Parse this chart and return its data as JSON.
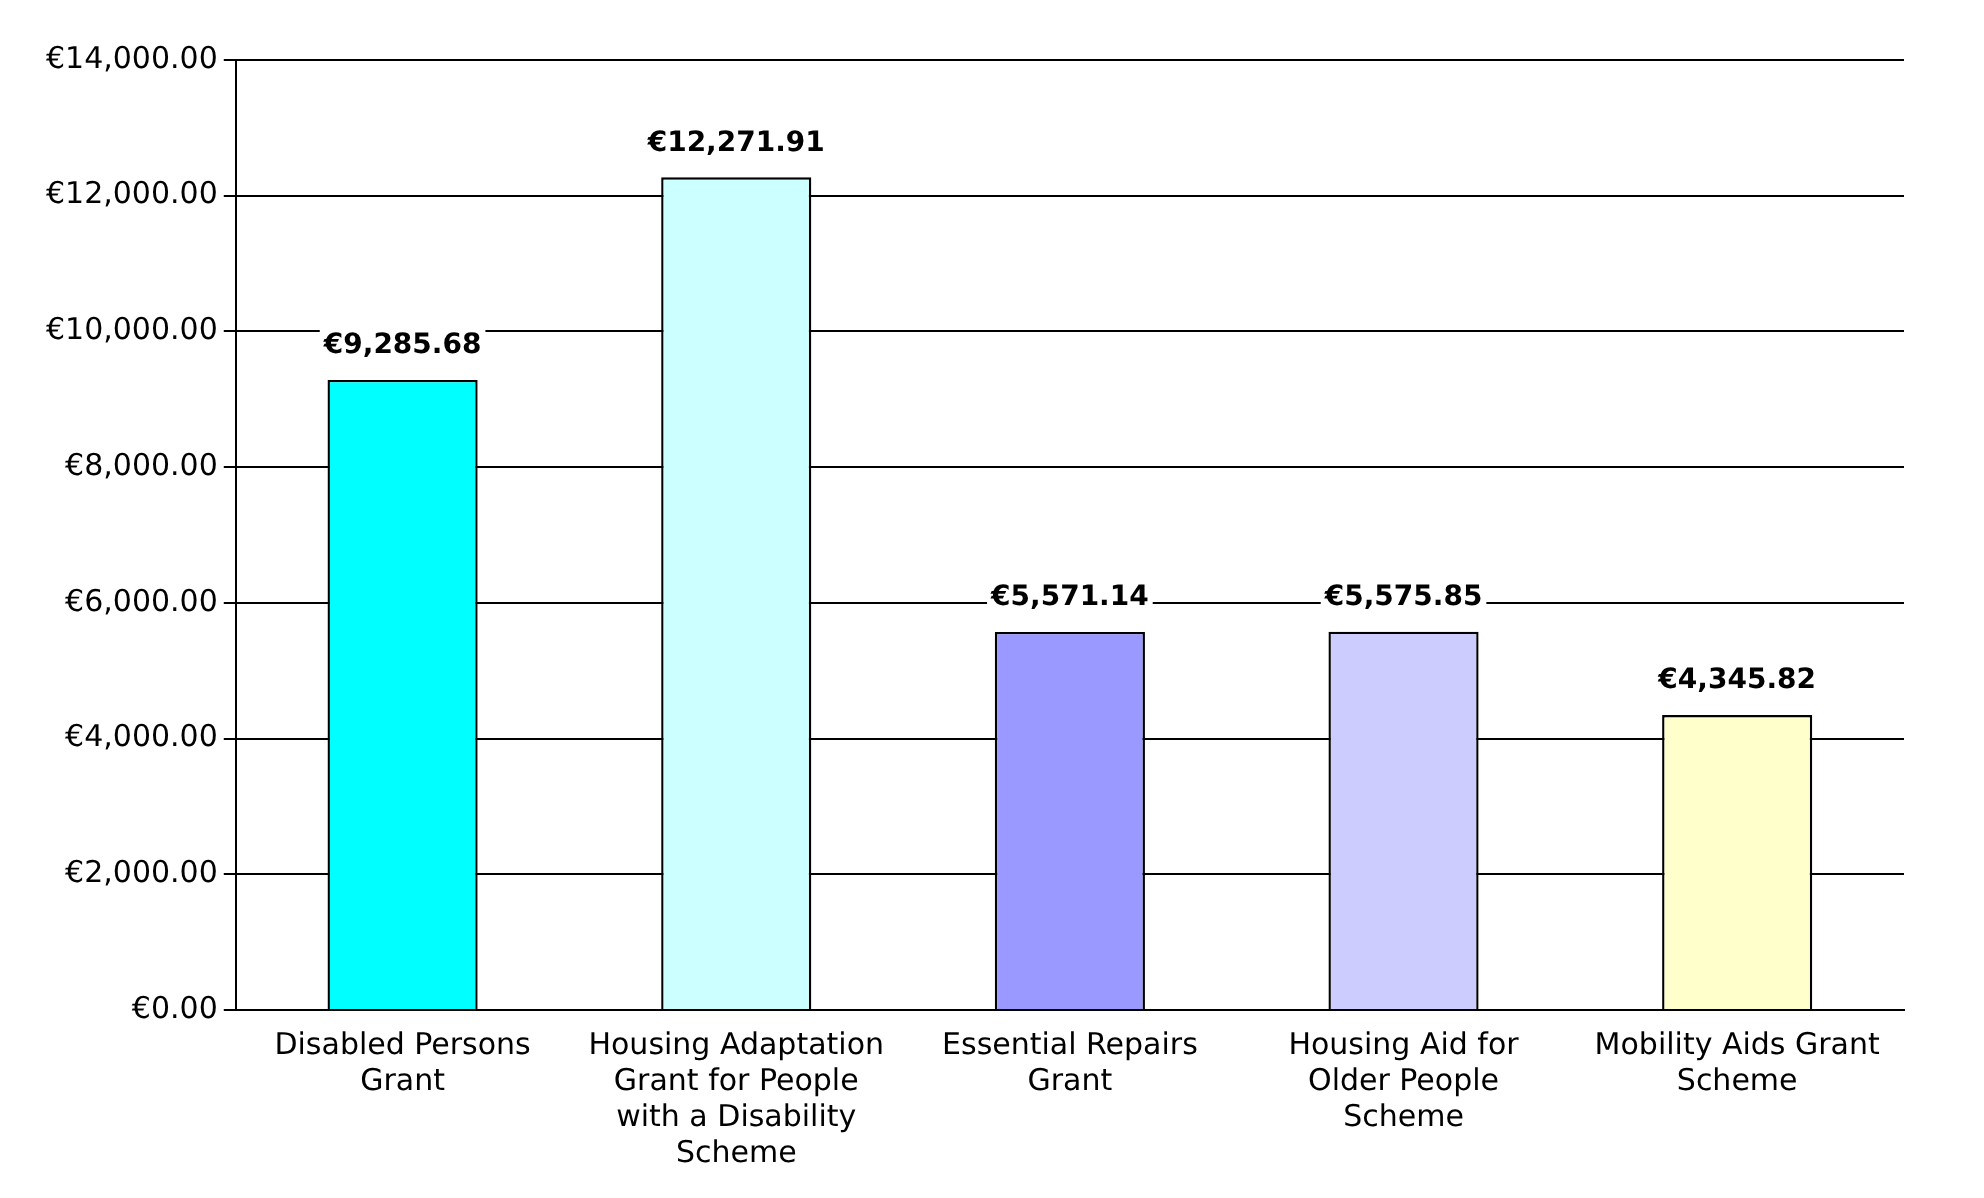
{
  "chart_data": {
    "type": "bar",
    "categories": [
      "Disabled Persons Grant",
      "Housing Adaptation Grant for People with a Disability Scheme",
      "Essential Repairs Grant",
      "Housing Aid for Older People Scheme",
      "Mobility Aids Grant Scheme"
    ],
    "values": [
      9285.68,
      12271.91,
      5571.14,
      5575.85,
      4345.82
    ],
    "colors": [
      "#00ffff",
      "#ccffff",
      "#9999ff",
      "#ccccff",
      "#ffffcc"
    ],
    "value_labels": [
      "€9,285.68",
      "€12,271.91",
      "€5,571.14",
      "€5,575.85",
      "€4,345.82"
    ],
    "ylim": [
      0,
      14000
    ],
    "yticks": [
      {
        "value": 0,
        "label": "€0.00"
      },
      {
        "value": 2000,
        "label": "€2,000.00"
      },
      {
        "value": 4000,
        "label": "€4,000.00"
      },
      {
        "value": 6000,
        "label": "€6,000.00"
      },
      {
        "value": 8000,
        "label": "€8,000.00"
      },
      {
        "value": 10000,
        "label": "€10,000.00"
      },
      {
        "value": 12000,
        "label": "€12,000.00"
      },
      {
        "value": 14000,
        "label": "€14,000.00"
      }
    ],
    "grid": "y",
    "legend": false
  }
}
